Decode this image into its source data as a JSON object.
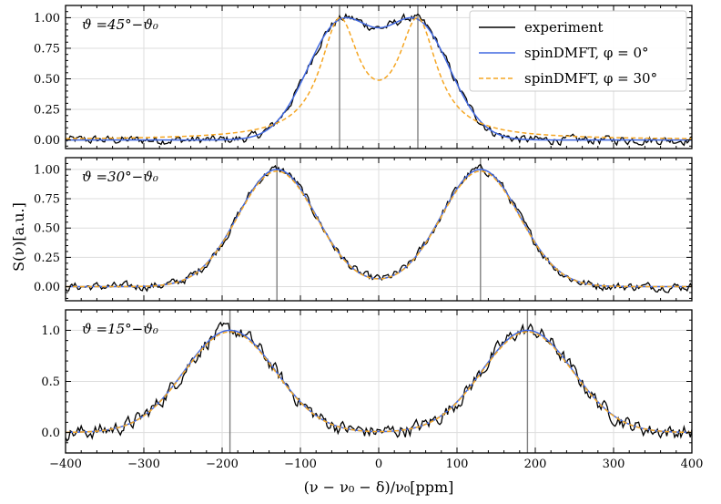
{
  "chart_data": {
    "type": "line",
    "shared_xlabel": "(ν − ν₀ − δ)/ν₀[ppm]",
    "shared_ylabel": "S(ν)[a.u.]",
    "xlim": [
      -400,
      400
    ],
    "xticks": [
      -400,
      -300,
      -200,
      -100,
      0,
      100,
      200,
      300,
      400
    ],
    "grid": true,
    "legend": {
      "placement": "top-right of first panel",
      "entries": [
        {
          "name": "experiment",
          "color": "#000000",
          "style": "solid"
        },
        {
          "name": "spinDMFT, φ = 0°",
          "color": "#4169e1",
          "style": "solid"
        },
        {
          "name": "spinDMFT, φ = 30°",
          "color": "#f5a623",
          "style": "dashed"
        }
      ]
    },
    "panels": [
      {
        "label": "ϑ =45°−ϑ₀",
        "ylim": [
          -0.07,
          1.1
        ],
        "yticks": [
          0.0,
          0.25,
          0.5,
          0.75,
          1.0
        ],
        "ytick_labels": [
          "0.00",
          "0.25",
          "0.50",
          "0.75",
          "1.00"
        ],
        "peaks": [
          -50,
          50
        ],
        "vlines": [
          -50,
          50
        ],
        "sigma_phi0": 42,
        "lorentz_gamma_phi30": 30,
        "noise_amplitude": 0.03
      },
      {
        "label": "ϑ =30°−ϑ₀",
        "ylim": [
          -0.12,
          1.1
        ],
        "yticks": [
          0.0,
          0.25,
          0.5,
          0.75,
          1.0
        ],
        "ytick_labels": [
          "0.00",
          "0.25",
          "0.50",
          "0.75",
          "1.00"
        ],
        "peaks": [
          -130,
          130
        ],
        "vlines": [
          -130,
          130
        ],
        "sigma_phi0": 50,
        "lorentz_gamma_phi30": 0,
        "noise_amplitude": 0.03
      },
      {
        "label": "ϑ =15°−ϑ₀",
        "ylim": [
          -0.2,
          1.2
        ],
        "yticks": [
          0.0,
          0.5,
          1.0
        ],
        "ytick_labels": [
          "0.0",
          "0.5",
          "1.0"
        ],
        "peaks": [
          -190,
          190
        ],
        "vlines": [
          -190,
          190
        ],
        "sigma_phi0": 58,
        "lorentz_gamma_phi30": 0,
        "noise_amplitude": 0.06
      }
    ]
  },
  "colors": {
    "experiment": "#000000",
    "phi0": "#4169e1",
    "phi30": "#f5a623",
    "vline": "#808080",
    "grid": "#dddddd"
  }
}
